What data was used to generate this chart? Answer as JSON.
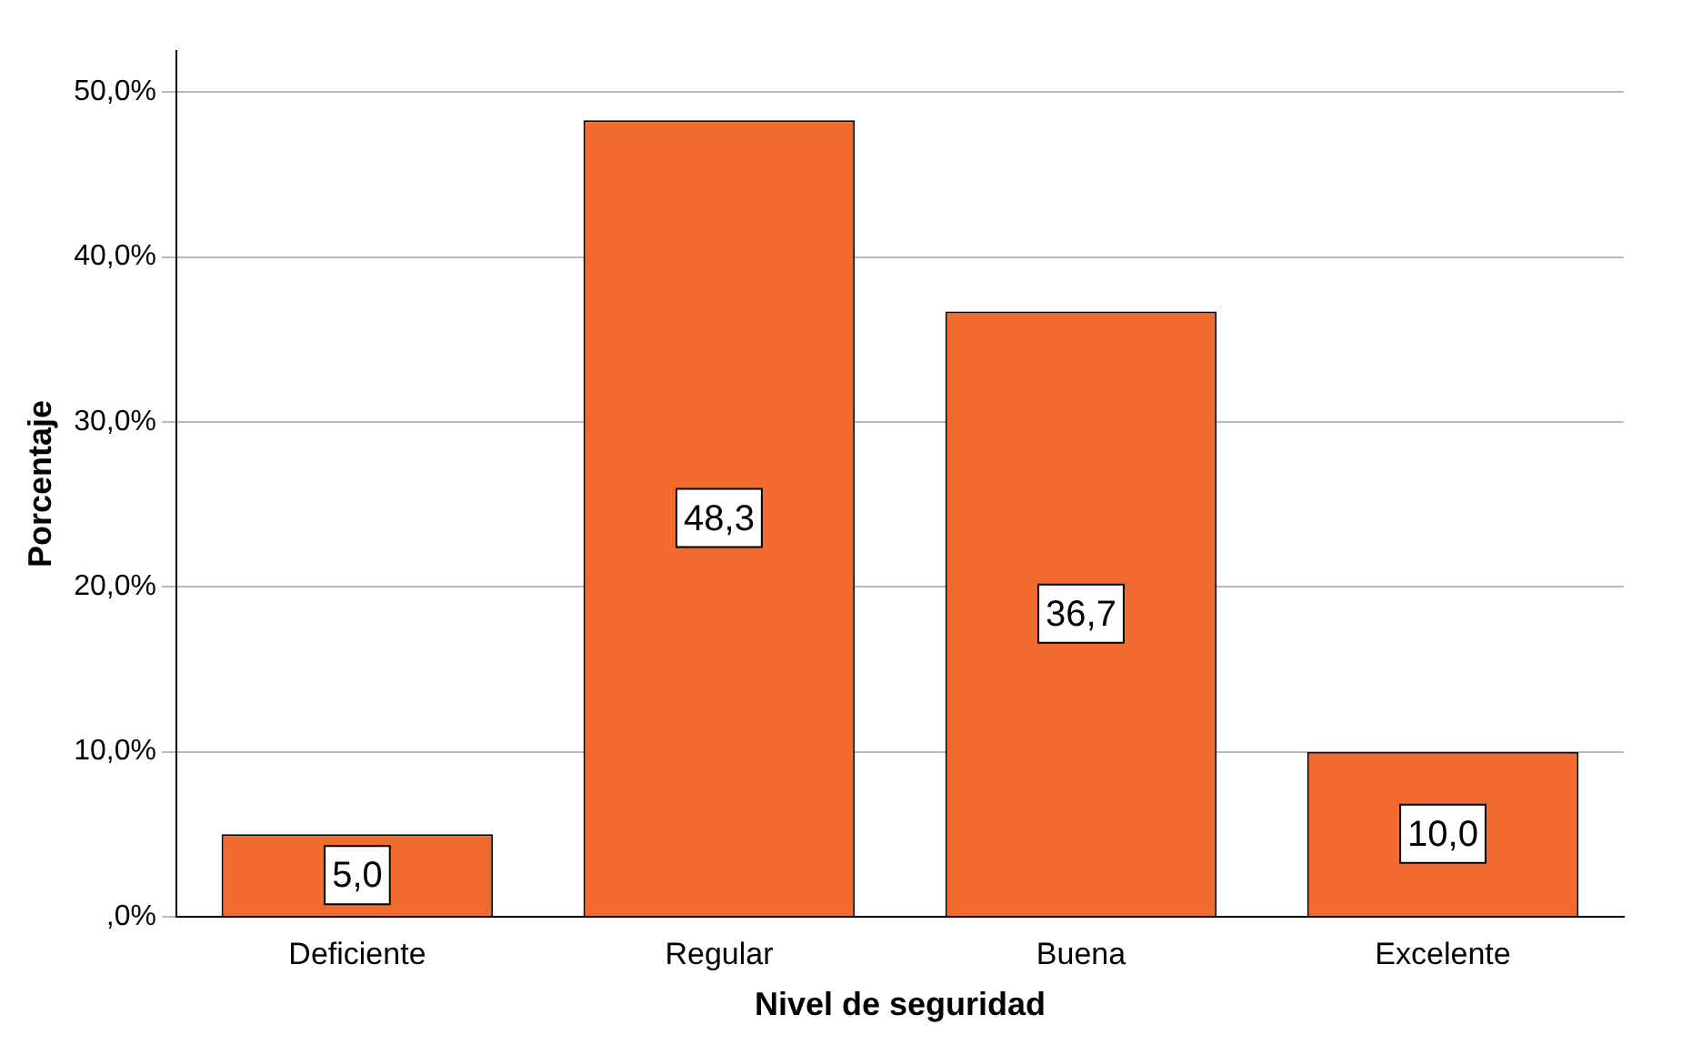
{
  "chart_data": {
    "type": "bar",
    "xlabel": "Nivel de seguridad",
    "ylabel": "Porcentaje",
    "categories": [
      "Deficiente",
      "Regular",
      "Buena",
      "Excelente"
    ],
    "values": [
      5.0,
      48.3,
      36.7,
      10.0
    ],
    "value_labels": [
      "5,0",
      "48,3",
      "36,7",
      "10,0"
    ],
    "color": "#f26b2e",
    "ylim": [
      0,
      52.5
    ],
    "yticks": [
      {
        "value": 0,
        "label": ",0%"
      },
      {
        "value": 10,
        "label": "10,0%"
      },
      {
        "value": 20,
        "label": "20,0%"
      },
      {
        "value": 30,
        "label": "30,0%"
      },
      {
        "value": 40,
        "label": "40,0%"
      },
      {
        "value": 50,
        "label": "50,0%"
      }
    ],
    "grid": "y",
    "legend": false
  }
}
